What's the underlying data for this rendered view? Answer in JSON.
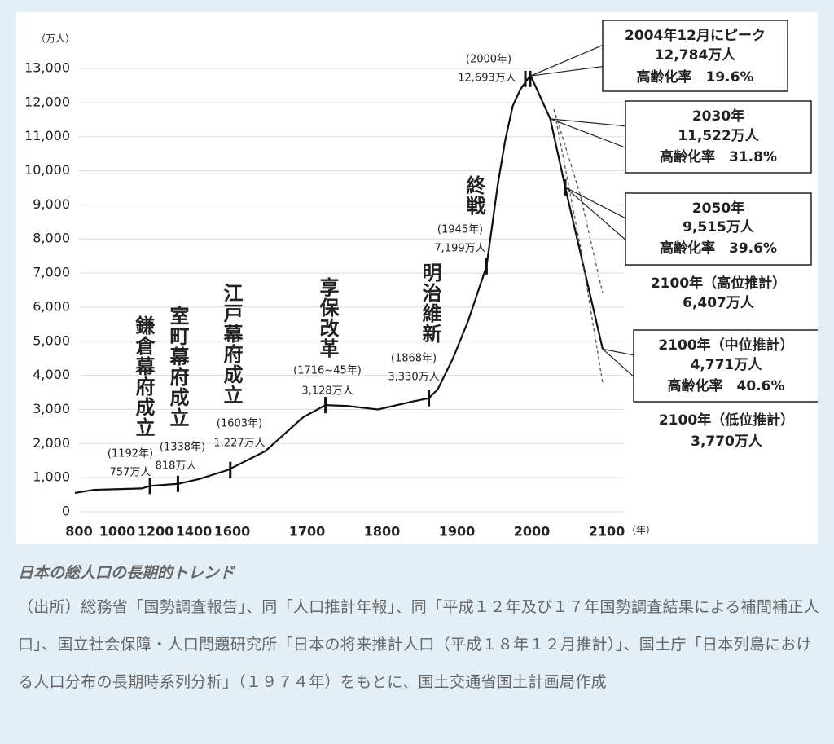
{
  "chart_data": {
    "type": "line",
    "y_unit": "（万人）",
    "x_unit": "（年）",
    "ylim": [
      0,
      13000
    ],
    "yticks": [
      0,
      {
        "value": 1000,
        "label": "1,000"
      },
      {
        "value": 2000,
        "label": "2,000"
      },
      {
        "value": 3000,
        "label": "3,000"
      },
      {
        "value": 4000,
        "label": "4,000"
      },
      {
        "value": 5000,
        "label": "5,000"
      },
      {
        "value": 6000,
        "label": "6,000"
      },
      {
        "value": 7000,
        "label": "7,000"
      },
      {
        "value": 8000,
        "label": "8,000"
      },
      {
        "value": 9000,
        "label": "9,000"
      },
      {
        "value": 10000,
        "label": "10,000"
      },
      {
        "value": 11000,
        "label": "11,000"
      },
      {
        "value": 12000,
        "label": "12,000"
      },
      {
        "value": 13000,
        "label": "13,000"
      }
    ],
    "xlim": [
      800,
      2100
    ],
    "xticks": [
      800,
      1000,
      1200,
      1400,
      1600,
      1700,
      1800,
      1900,
      2000,
      2100
    ],
    "grid": true,
    "series": [
      {
        "color": "#111111",
        "dashed": false,
        "x": [
          800,
          900,
          1150,
          1192,
          1338,
          1450,
          1600,
          1650,
          1700,
          1730,
          1760,
          1800,
          1846,
          1868,
          1880,
          1900,
          1920,
          1945,
          1960,
          1970,
          1980,
          1990,
          2000,
          2004,
          2030,
          2050,
          2100
        ],
        "values": [
          551,
          644,
          684,
          757,
          818,
          960,
          1227,
          1781,
          2769,
          3128,
          3100,
          3000,
          3230,
          3330,
          3596,
          4490,
          5570,
          7199,
          9600,
          10900,
          11900,
          12380,
          12693,
          12784,
          11522,
          9515,
          4771
        ]
      },
      {
        "color": "#555555",
        "dashed": true,
        "x": [
          2035,
          2070,
          2100
        ],
        "values": [
          11800,
          9300,
          6407
        ]
      },
      {
        "color": "#555555",
        "dashed": true,
        "x": [
          2035,
          2070,
          2100
        ],
        "values": [
          11800,
          7800,
          3770
        ]
      }
    ],
    "annotations": [
      {
        "text": "鎌倉幕府成立",
        "year_label": "(1192年)",
        "value_label": "757万人",
        "x": 1192,
        "y": 757
      },
      {
        "text": "室町幕府成立",
        "year_label": "(1338年)",
        "value_label": "818万人",
        "x": 1338,
        "y": 818
      },
      {
        "text": "江戸幕府成立",
        "year_label": "(1603年)",
        "value_label": "1,227万人",
        "x": 1603,
        "y": 1227
      },
      {
        "text": "享保改革",
        "year_label": "(1716~45年)",
        "value_label": "3,128万人",
        "x": 1730,
        "y": 3128
      },
      {
        "text": "明治維新",
        "year_label": "(1868年)",
        "value_label": "3,330万人",
        "x": 1868,
        "y": 3330
      },
      {
        "text": "終戦",
        "year_label": "(1945年)",
        "value_label": "7,199万人",
        "x": 1945,
        "y": 7199
      },
      {
        "year_label": "(2000年)",
        "value_label": "12,693万人",
        "x": 2000,
        "y": 12693
      },
      {
        "x": 2050,
        "y": 9515
      }
    ],
    "callouts": [
      {
        "lines": [
          "2004年12月にピーク",
          "12,784万人",
          "高齢化率　19.6%"
        ],
        "boxed": true,
        "x": 2004,
        "y": 12784
      },
      {
        "lines": [
          "2030年",
          "11,522万人",
          "高齢化率　31.8%"
        ],
        "boxed": true,
        "x": 2030,
        "y": 11522
      },
      {
        "lines": [
          "2050年",
          "9,515万人",
          "高齢化率　39.6%"
        ],
        "boxed": true,
        "x": 2050,
        "y": 9515
      },
      {
        "lines": [
          "2100年（高位推計）",
          "6,407万人"
        ],
        "boxed": false
      },
      {
        "lines": [
          "2100年（中位推計）",
          "4,771万人",
          "高齢化率　40.6%"
        ],
        "boxed": true,
        "x": 2100,
        "y": 4771
      },
      {
        "lines": [
          "2100年（低位推計）",
          "3,770万人"
        ],
        "boxed": false
      }
    ]
  },
  "caption": {
    "title": "日本の総人口の長期的トレンド",
    "source": "（出所）総務省「国勢調査報告」、同「人口推計年報」、同「平成１２年及び１７年国勢調査結果による補間補正人口」、国立社会保障・人口問題研究所「日本の将来推計人口（平成１８年１２月推計）」、国土庁「日本列島における人口分布の長期時系列分析」（１９７４年）をもとに、国土交通省国土計画局作成"
  }
}
